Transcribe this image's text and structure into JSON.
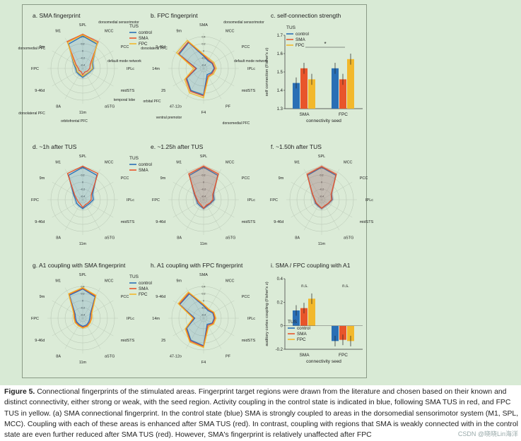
{
  "panels": {
    "a": {
      "title": "a. SMA fingerprint"
    },
    "b": {
      "title": "b. FPC fingerprint"
    },
    "c": {
      "title": "c. self-connection strength"
    },
    "d": {
      "title": "d. ~1h after TUS"
    },
    "e": {
      "title": "e. ~1.25h after TUS"
    },
    "f": {
      "title": "f. ~1.50h after TUS"
    },
    "g": {
      "title": "g. A1 coupling with SMA fingerprint"
    },
    "h": {
      "title": "h. A1 coupling with FPC fingerprint"
    },
    "i": {
      "title": "i. SMA / FPC coupling with A1"
    }
  },
  "legend": {
    "title": "TUS",
    "items": [
      {
        "label": "control",
        "color": "#2a6fb5"
      },
      {
        "label": "SMA",
        "color": "#e8552b"
      },
      {
        "label": "FPC",
        "color": "#f2b82c"
      }
    ]
  },
  "radar_sma_labels": [
    "SPL",
    "MCC",
    "PCC",
    "IPLc",
    "midSTS",
    "aSTG",
    "11m",
    "8A",
    "9-46d",
    "FPC",
    "9m",
    "M1"
  ],
  "radar_fpc_labels": [
    "SMA",
    "MCC",
    "PCC",
    "IPLc",
    "midSTS",
    "PF",
    "F4",
    "47-12o",
    "25",
    "14m",
    "9-46d",
    "9m"
  ],
  "radar_ticks": [
    "0.4",
    "0.2",
    "0",
    "-0.2",
    "-0.4"
  ],
  "grey_labels_a": [
    "dorsomedial sensorimotor",
    "default mode network",
    "temporal lobe",
    "orbitofrontal PFC",
    "dorsolateral PFC",
    "dorsomedial PFC"
  ],
  "grey_labels_b": [
    "dorsomedial sensorimotor",
    "default mode network",
    "dorsomedial PFC",
    "ventral premotor",
    "orbital PFC",
    "dorsolateral PFC"
  ],
  "colors": {
    "control": "#2a6fb5",
    "SMA": "#e8552b",
    "FPC": "#f2b82c",
    "figure_bg": "#d8ead5"
  },
  "chart_data": [
    {
      "type": "bar",
      "title": "c. self-connection strength",
      "xlabel": "connectivity seed",
      "ylabel": "self connection (Fisher's z)",
      "categories": [
        "SMA",
        "FPC"
      ],
      "series": [
        {
          "name": "control",
          "values": [
            1.44,
            1.52
          ]
        },
        {
          "name": "SMA",
          "values": [
            1.52,
            1.46
          ]
        },
        {
          "name": "FPC",
          "values": [
            1.46,
            1.57
          ]
        }
      ],
      "ylim": [
        1.3,
        1.7
      ],
      "yticks": [
        "1.3",
        "1.4",
        "1.5",
        "1.6",
        "1.7"
      ],
      "annotation": "*"
    },
    {
      "type": "bar",
      "title": "i. SMA / FPC coupling with A1",
      "xlabel": "connectivity seed",
      "ylabel": "auditory cortex coupling (Fisher's z)",
      "categories": [
        "SMA",
        "FPC"
      ],
      "series": [
        {
          "name": "control",
          "values": [
            0.13,
            -0.13
          ]
        },
        {
          "name": "SMA",
          "values": [
            0.15,
            -0.12
          ]
        },
        {
          "name": "FPC",
          "values": [
            0.23,
            -0.13
          ]
        }
      ],
      "ylim": [
        -0.2,
        0.4
      ],
      "yticks": [
        "-0.2",
        "0",
        "0.2",
        "0.4"
      ],
      "annotations": [
        "n.s.",
        "n.s."
      ]
    }
  ],
  "caption": {
    "label": "Figure 5.",
    "text": " Connectional fingerprints of the stimulated areas. Fingerprint target regions were drawn from the literature and chosen based on their known and distinct connectivity, either strong or weak, with the seed region. Activity coupling in the control state is indicated in blue, following SMA TUS in red, and FPC TUS in yellow. (a) SMA connectional fingerprint. In the control state (blue) SMA is strongly coupled to areas in the dorsomedial sensorimotor system (M1, SPL, MCC). Coupling with each of these areas is enhanced after SMA TUS (red). In contrast, coupling with regions that SMA is weakly connected with in the control state are even further reduced after SMA TUS (red). However, SMA's fingerprint is relatively unaffected after FPC"
  },
  "watermark": "CSDN @晓晓Lin海洋"
}
